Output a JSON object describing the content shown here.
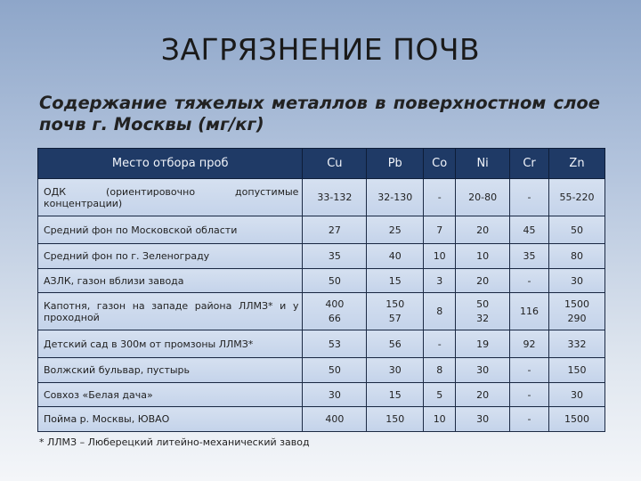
{
  "title": "ЗАГРЯЗНЕНИЕ ПОЧВ",
  "subtitle": "Содержание тяжелых металлов в поверхностном слое почв г. Москвы (мг/кг)",
  "table": {
    "headers": [
      "Место отбора проб",
      "Cu",
      "Pb",
      "Co",
      "Ni",
      "Cr",
      "Zn"
    ],
    "rows": [
      [
        "ОДК (ориентировочно допустимые концентрации)",
        "33-132",
        "32-130",
        "-",
        "20-80",
        "-",
        "55-220"
      ],
      [
        "Средний фон по Московской области",
        "27",
        "25",
        "7",
        "20",
        "45",
        "50"
      ],
      [
        "Средний фон по г. Зеленограду",
        "35",
        "40",
        "10",
        "10",
        "35",
        "80"
      ],
      [
        "АЗЛК, газон вблизи завода",
        "50",
        "15",
        "3",
        "20",
        "-",
        "30"
      ],
      [
        "Капотня, газон на западе района ЛЛМЗ* и у проходной",
        "400\n66",
        "150\n57",
        "8",
        "50\n32",
        "116",
        "1500\n290"
      ],
      [
        "Детский сад в 300м от промзоны ЛЛМЗ*",
        "53",
        "56",
        "-",
        "19",
        "92",
        "332"
      ],
      [
        "Волжский бульвар, пустырь",
        "50",
        "30",
        "8",
        "30",
        "-",
        "150"
      ],
      [
        "Совхоз «Белая дача»",
        "30",
        "15",
        "5",
        "20",
        "-",
        "30"
      ],
      [
        "Пойма р. Москвы, ЮВАО",
        "400",
        "150",
        "10",
        "30",
        "-",
        "1500"
      ]
    ]
  },
  "footnote": "* ЛЛМЗ – Люберецкий литейно-механический завод"
}
